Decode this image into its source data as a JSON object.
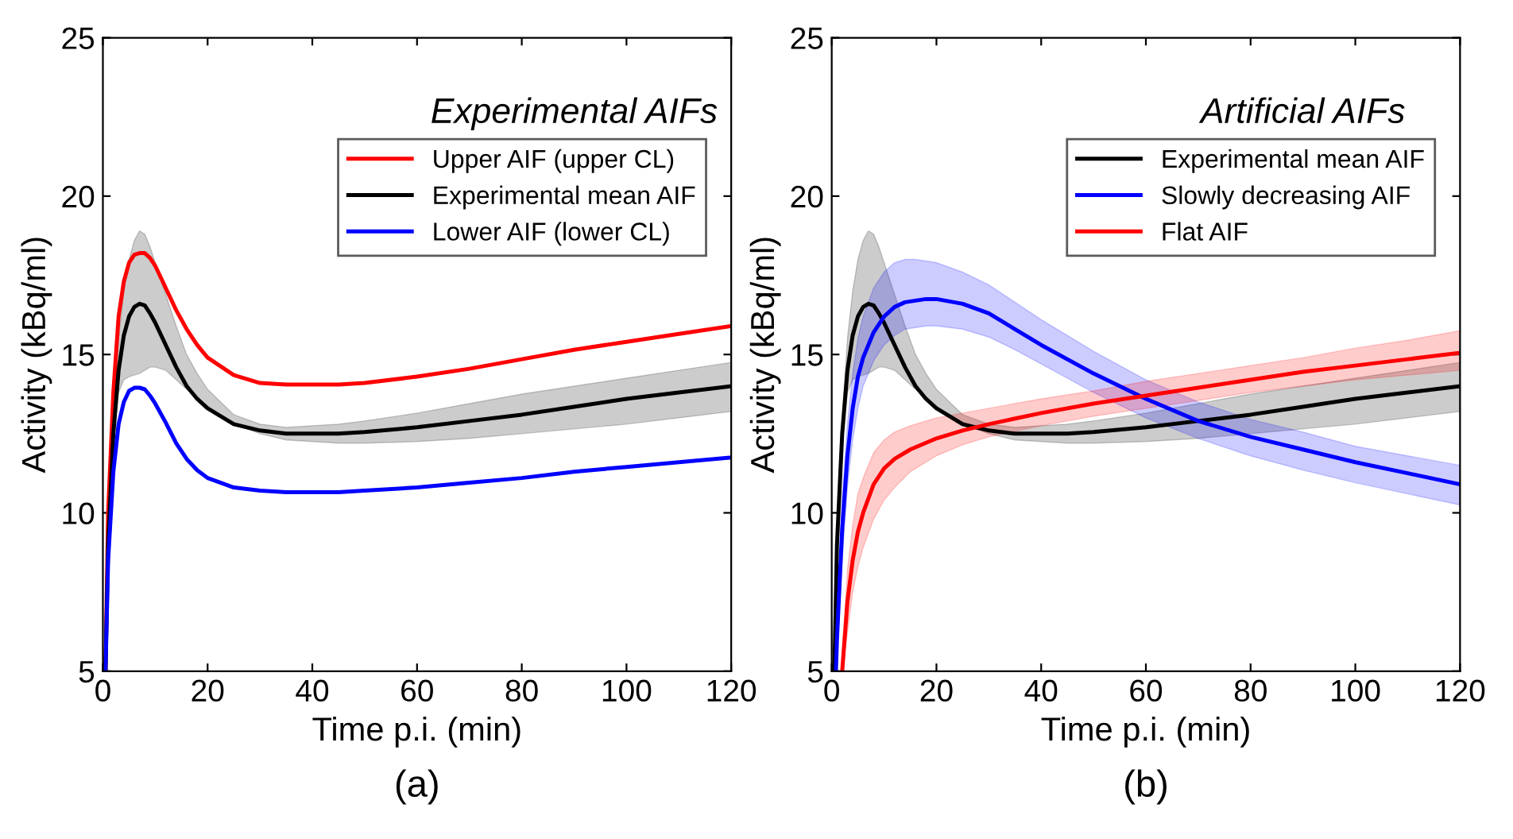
{
  "chart_data": [
    {
      "type": "line",
      "title": "Experimental AIFs",
      "xlabel": "Time p.i. (min)",
      "ylabel": "Activity (kBq/ml)",
      "annotations": [
        "(a)"
      ],
      "xlim": [
        0,
        120
      ],
      "ylim": [
        5,
        25
      ],
      "xticks": [
        0,
        20,
        40,
        60,
        80,
        100,
        120
      ],
      "yticks": [
        5,
        10,
        15,
        20,
        25
      ],
      "grid": false,
      "legend": "top right",
      "line_style": "solid",
      "marker": "none",
      "series": [
        {
          "name": "Upper AIF (upper CL)",
          "color": "#ff0000",
          "x": [
            0.5,
            1,
            2,
            3,
            4,
            5,
            6,
            7,
            8,
            9,
            10,
            12,
            14,
            16,
            18,
            20,
            25,
            30,
            35,
            40,
            45,
            50,
            60,
            70,
            80,
            90,
            100,
            110,
            120
          ],
          "values": [
            5,
            10,
            13.8,
            16.2,
            17.3,
            17.9,
            18.15,
            18.2,
            18.2,
            18.05,
            17.8,
            17.1,
            16.4,
            15.8,
            15.3,
            14.9,
            14.35,
            14.1,
            14.05,
            14.05,
            14.05,
            14.1,
            14.3,
            14.55,
            14.85,
            15.15,
            15.4,
            15.65,
            15.9
          ]
        },
        {
          "name": "Experimental mean AIF",
          "color": "#000000",
          "x": [
            0.5,
            1,
            2,
            3,
            4,
            5,
            6,
            7,
            8,
            9,
            10,
            12,
            14,
            16,
            18,
            20,
            25,
            30,
            35,
            40,
            45,
            50,
            60,
            70,
            80,
            90,
            100,
            110,
            120
          ],
          "values": [
            5,
            9,
            12.5,
            14.5,
            15.6,
            16.2,
            16.5,
            16.6,
            16.55,
            16.3,
            16.0,
            15.3,
            14.6,
            14.0,
            13.6,
            13.3,
            12.8,
            12.6,
            12.5,
            12.5,
            12.5,
            12.55,
            12.7,
            12.9,
            13.1,
            13.35,
            13.6,
            13.8,
            14.0
          ],
          "lower": [
            5,
            9,
            12.3,
            13.8,
            14.2,
            14.3,
            14.35,
            14.4,
            14.5,
            14.6,
            14.6,
            14.5,
            14.2,
            13.9,
            13.6,
            13.3,
            12.8,
            12.5,
            12.3,
            12.25,
            12.2,
            12.2,
            12.25,
            12.35,
            12.5,
            12.65,
            12.8,
            13.0,
            13.2
          ],
          "upper": [
            5,
            9,
            13,
            15.5,
            17,
            18,
            18.6,
            18.9,
            18.8,
            18.4,
            17.9,
            16.9,
            15.9,
            15.0,
            14.4,
            13.9,
            13.1,
            12.8,
            12.7,
            12.75,
            12.8,
            12.9,
            13.15,
            13.45,
            13.75,
            14.0,
            14.25,
            14.5,
            14.75
          ]
        },
        {
          "name": "Lower AIF (lower CL)",
          "color": "#0000ff",
          "x": [
            0.5,
            1,
            2,
            3,
            4,
            5,
            6,
            7,
            8,
            9,
            10,
            12,
            14,
            16,
            18,
            20,
            25,
            30,
            35,
            40,
            45,
            50,
            60,
            70,
            80,
            90,
            100,
            110,
            120
          ],
          "values": [
            5,
            8.5,
            11.3,
            12.8,
            13.5,
            13.85,
            13.95,
            13.95,
            13.9,
            13.7,
            13.45,
            12.85,
            12.2,
            11.7,
            11.35,
            11.1,
            10.8,
            10.7,
            10.65,
            10.65,
            10.65,
            10.7,
            10.8,
            10.95,
            11.1,
            11.3,
            11.45,
            11.6,
            11.75
          ]
        }
      ]
    },
    {
      "type": "line",
      "title": "Artificial AIFs",
      "xlabel": "Time p.i. (min)",
      "ylabel": "Activity (kBq/ml)",
      "annotations": [
        "(b)"
      ],
      "xlim": [
        0,
        120
      ],
      "ylim": [
        5,
        25
      ],
      "xticks": [
        0,
        20,
        40,
        60,
        80,
        100,
        120
      ],
      "yticks": [
        5,
        10,
        15,
        20,
        25
      ],
      "grid": false,
      "legend": "top right",
      "line_style": "solid",
      "marker": "none",
      "series": [
        {
          "name": "Experimental mean AIF",
          "color": "#000000",
          "x": [
            0.5,
            1,
            2,
            3,
            4,
            5,
            6,
            7,
            8,
            9,
            10,
            12,
            14,
            16,
            18,
            20,
            25,
            30,
            35,
            40,
            45,
            50,
            60,
            70,
            80,
            90,
            100,
            110,
            120
          ],
          "values": [
            5,
            9,
            12.5,
            14.5,
            15.6,
            16.2,
            16.5,
            16.6,
            16.55,
            16.3,
            16.0,
            15.3,
            14.6,
            14.0,
            13.6,
            13.3,
            12.8,
            12.6,
            12.5,
            12.5,
            12.5,
            12.55,
            12.7,
            12.9,
            13.1,
            13.35,
            13.6,
            13.8,
            14.0
          ],
          "lower": [
            5,
            9,
            12.3,
            13.8,
            14.2,
            14.3,
            14.35,
            14.4,
            14.5,
            14.6,
            14.6,
            14.5,
            14.2,
            13.9,
            13.6,
            13.3,
            12.8,
            12.5,
            12.3,
            12.25,
            12.2,
            12.2,
            12.25,
            12.35,
            12.5,
            12.65,
            12.8,
            13.0,
            13.2
          ],
          "upper": [
            5,
            9,
            13,
            15.5,
            17,
            18,
            18.6,
            18.9,
            18.8,
            18.4,
            17.9,
            16.9,
            15.9,
            15.0,
            14.4,
            13.9,
            13.1,
            12.8,
            12.7,
            12.75,
            12.8,
            12.9,
            13.15,
            13.45,
            13.75,
            14.0,
            14.25,
            14.5,
            14.75
          ]
        },
        {
          "name": "Slowly decreasing AIF",
          "color": "#0000ff",
          "x": [
            0.8,
            1,
            2,
            3,
            4,
            5,
            6,
            8,
            10,
            12,
            14,
            16,
            18,
            20,
            25,
            30,
            35,
            40,
            50,
            60,
            70,
            80,
            90,
            100,
            110,
            120
          ],
          "values": [
            5,
            6,
            9.5,
            11.8,
            13.3,
            14.3,
            14.9,
            15.7,
            16.2,
            16.5,
            16.65,
            16.7,
            16.75,
            16.75,
            16.6,
            16.3,
            15.8,
            15.3,
            14.4,
            13.6,
            12.9,
            12.4,
            12.0,
            11.6,
            11.25,
            10.9
          ],
          "lower": [
            5,
            5.5,
            8.5,
            10.8,
            12.3,
            13.3,
            14.0,
            14.8,
            15.3,
            15.6,
            15.8,
            15.85,
            15.9,
            15.9,
            15.8,
            15.55,
            15.15,
            14.7,
            13.8,
            13.0,
            12.35,
            11.8,
            11.35,
            10.95,
            10.6,
            10.25
          ],
          "upper": [
            5,
            6.5,
            10.5,
            12.8,
            14.4,
            15.5,
            16.2,
            17.1,
            17.6,
            17.9,
            18.0,
            18.0,
            17.95,
            17.9,
            17.6,
            17.2,
            16.65,
            16.1,
            15.1,
            14.2,
            13.5,
            12.95,
            12.55,
            12.1,
            11.8,
            11.5
          ]
        },
        {
          "name": "Flat AIF",
          "color": "#ff0000",
          "x": [
            2,
            3,
            4,
            5,
            6,
            8,
            10,
            12,
            15,
            20,
            25,
            30,
            40,
            50,
            60,
            70,
            80,
            90,
            100,
            110,
            120
          ],
          "values": [
            5,
            7.2,
            8.5,
            9.4,
            10.0,
            10.9,
            11.4,
            11.7,
            12.0,
            12.35,
            12.6,
            12.8,
            13.15,
            13.45,
            13.7,
            13.95,
            14.2,
            14.45,
            14.65,
            14.85,
            15.05
          ],
          "lower": [
            5,
            6.2,
            7.5,
            8.3,
            8.9,
            9.8,
            10.4,
            10.8,
            11.3,
            11.8,
            12.15,
            12.4,
            12.75,
            13.05,
            13.3,
            13.55,
            13.8,
            14.0,
            14.2,
            14.35,
            14.5
          ],
          "upper": [
            5.5,
            8.2,
            9.6,
            10.6,
            11.1,
            11.9,
            12.3,
            12.55,
            12.75,
            13.0,
            13.15,
            13.3,
            13.6,
            13.85,
            14.15,
            14.4,
            14.65,
            14.9,
            15.2,
            15.45,
            15.75
          ]
        }
      ]
    }
  ]
}
